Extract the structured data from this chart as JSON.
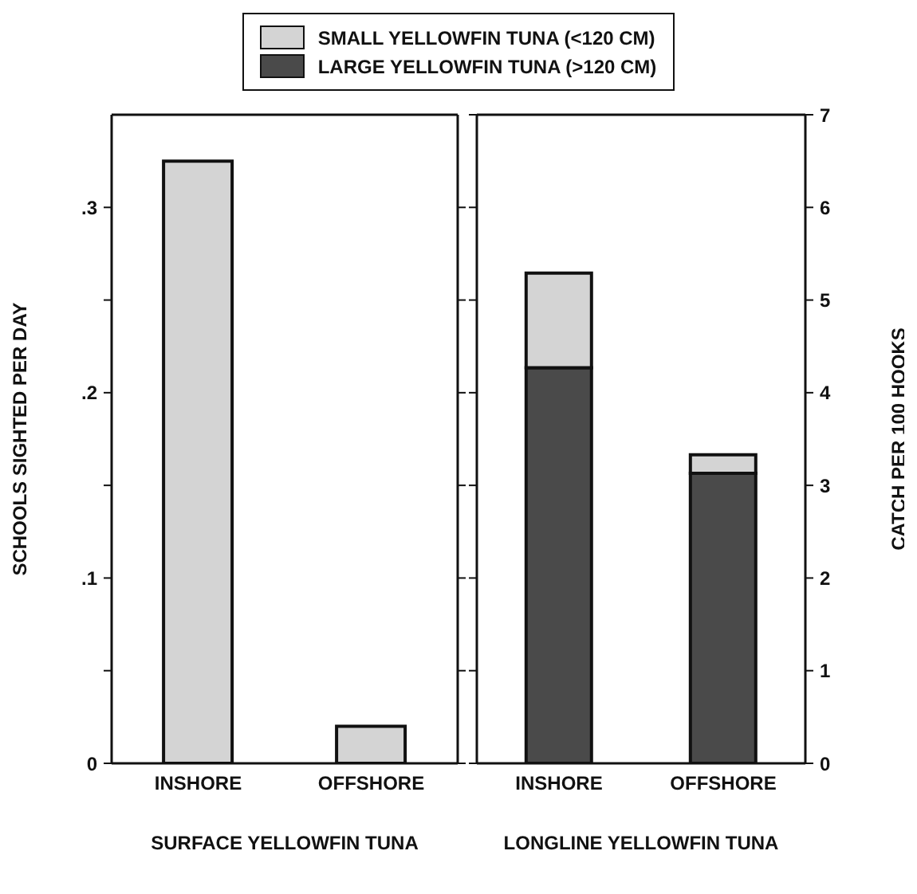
{
  "chart_data": [
    {
      "type": "bar",
      "xlabel": "SURFACE YELLOWFIN TUNA",
      "ylabel": "SCHOOLS SIGHTED PER DAY",
      "categories": [
        "INSHORE",
        "OFFSHORE"
      ],
      "stacked": true,
      "series": [
        {
          "name": "SMALL YELLOWFIN TUNA (<120 CM)",
          "color": "#d4d4d4",
          "values": [
            0.325,
            0.02
          ]
        }
      ],
      "ylim": [
        0,
        0.35
      ],
      "yticks": [
        0,
        {
          "value": 0.05,
          "label": null
        },
        {
          "value": 0.1,
          "label": ".1"
        },
        {
          "value": 0.15,
          "label": null
        },
        {
          "value": 0.2,
          "label": ".2"
        },
        {
          "value": 0.25,
          "label": null
        },
        {
          "value": 0.3,
          "label": ".3"
        }
      ],
      "grid": false,
      "legend": "top"
    },
    {
      "type": "bar",
      "xlabel": "LONGLINE YELLOWFIN TUNA",
      "y2label": "CATCH PER 100 HOOKS",
      "categories": [
        "INSHORE",
        "OFFSHORE"
      ],
      "stacked": true,
      "series": [
        {
          "name": "LARGE YELLOWFIN TUNA (>120 CM)",
          "color": "#4a4a4a",
          "values": [
            4.27,
            3.13
          ],
          "axis": "y2"
        },
        {
          "color": "#d4d4d4",
          "values": [
            1.02,
            0.2
          ],
          "axis": "y2"
        }
      ],
      "y2lim": [
        0,
        7
      ],
      "y2ticks": [
        0,
        1,
        2,
        3,
        4,
        5,
        6,
        7
      ],
      "grid": false,
      "legend": "top"
    }
  ]
}
